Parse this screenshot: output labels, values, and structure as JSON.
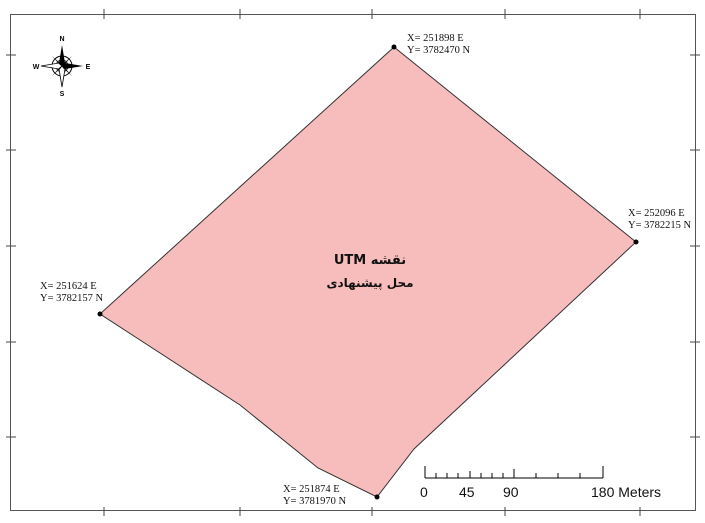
{
  "map": {
    "title_line1": "نقشه UTM",
    "title_line2": "محل پیشنهادی",
    "polygon_fill": "#f7bcbc",
    "polygon_stroke": "#333333"
  },
  "corners": [
    {
      "id": "north",
      "x_label": "X= 251898 E",
      "y_label": "Y= 3782470 N"
    },
    {
      "id": "east",
      "x_label": "X= 252096 E",
      "y_label": "Y= 3782215 N"
    },
    {
      "id": "west",
      "x_label": "X= 251624 E",
      "y_label": "Y= 3782157 N"
    },
    {
      "id": "south",
      "x_label": "X= 251874 E",
      "y_label": "Y= 3781970 N"
    }
  ],
  "compass": {
    "n": "N",
    "s": "S",
    "e": "E",
    "w": "W"
  },
  "scale_bar": {
    "labels": [
      "0",
      "45",
      "90",
      "180 Meters"
    ]
  }
}
